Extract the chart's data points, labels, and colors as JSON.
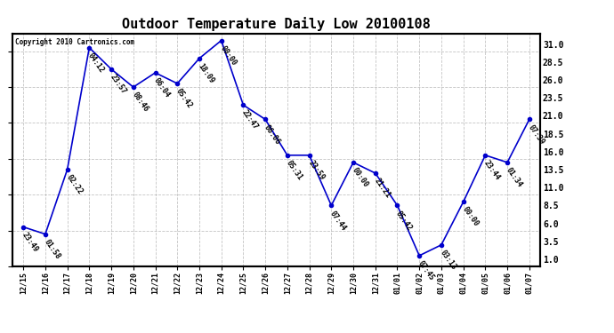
{
  "title": "Outdoor Temperature Daily Low 20100108",
  "copyright": "Copyright 2010 Cartronics.com",
  "x_labels": [
    "12/15",
    "12/16",
    "12/17",
    "12/18",
    "12/19",
    "12/20",
    "12/21",
    "12/22",
    "12/23",
    "12/24",
    "12/25",
    "12/26",
    "12/27",
    "12/28",
    "12/29",
    "12/30",
    "12/31",
    "01/01",
    "01/02",
    "01/03",
    "01/04",
    "01/05",
    "01/06",
    "01/07"
  ],
  "y_values": [
    5.5,
    4.5,
    13.5,
    30.5,
    27.5,
    25.0,
    27.0,
    25.5,
    29.0,
    31.5,
    22.5,
    20.5,
    15.5,
    15.5,
    8.5,
    14.5,
    13.0,
    8.5,
    1.5,
    3.0,
    9.0,
    15.5,
    14.5,
    20.5
  ],
  "time_labels": [
    "23:49",
    "01:58",
    "02:22",
    "04:12",
    "23:57",
    "08:46",
    "06:04",
    "05:42",
    "18:09",
    "00:00",
    "22:47",
    "06:06",
    "05:31",
    "23:59",
    "07:44",
    "00:00",
    "21:21",
    "05:42",
    "07:45",
    "03:13",
    "00:00",
    "23:44",
    "01:34",
    "07:39"
  ],
  "line_color": "#0000cc",
  "marker_color": "#0000cc",
  "bg_color": "#ffffff",
  "grid_color": "#aaaaaa",
  "y_right_ticks": [
    1.0,
    3.5,
    6.0,
    8.5,
    11.0,
    13.5,
    16.0,
    18.5,
    21.0,
    23.5,
    26.0,
    28.5,
    31.0
  ],
  "ylim": [
    0.0,
    32.5
  ],
  "font_size_title": 11,
  "font_size_labels": 6,
  "font_size_xticks": 6,
  "font_size_yticks": 7
}
